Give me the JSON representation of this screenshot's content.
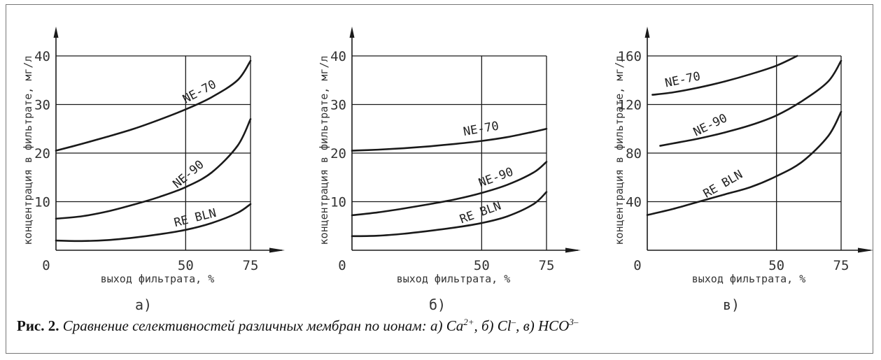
{
  "chart_data": [
    {
      "type": "line",
      "panel_label": "а)",
      "xlabel": "выход фильтрата, %",
      "ylabel": "концентрация в фильтрате, мг/л",
      "xlim": [
        0,
        75
      ],
      "ylim": [
        0,
        40
      ],
      "xticks": [
        0,
        50,
        75
      ],
      "yticks": [
        10,
        20,
        30,
        40
      ],
      "grid": true,
      "series": [
        {
          "name": "NE-70",
          "x": [
            0,
            10,
            20,
            30,
            40,
            50,
            60,
            70,
            75
          ],
          "values": [
            20.5,
            21.9,
            23.4,
            25.0,
            26.9,
            29.0,
            31.5,
            35.0,
            39.0
          ]
        },
        {
          "name": "NE-90",
          "x": [
            0,
            10,
            20,
            30,
            40,
            50,
            60,
            70,
            75
          ],
          "values": [
            6.5,
            7.0,
            8.0,
            9.4,
            11.0,
            13.0,
            16.0,
            21.5,
            27.0
          ]
        },
        {
          "name": "RE BLN",
          "x": [
            0,
            10,
            20,
            30,
            40,
            50,
            60,
            70,
            75
          ],
          "values": [
            2.0,
            1.9,
            2.1,
            2.6,
            3.3,
            4.2,
            5.6,
            7.7,
            9.5
          ]
        }
      ]
    },
    {
      "type": "line",
      "panel_label": "б)",
      "xlabel": "выход фильтрата, %",
      "ylabel": "концентрация в фильтрате, мг/л",
      "xlim": [
        0,
        75
      ],
      "ylim": [
        0,
        40
      ],
      "xticks": [
        0,
        50,
        75
      ],
      "yticks": [
        10,
        20,
        30,
        40
      ],
      "grid": true,
      "series": [
        {
          "name": "NE-70",
          "x": [
            0,
            10,
            20,
            30,
            40,
            50,
            60,
            70,
            75
          ],
          "values": [
            20.5,
            20.7,
            21.0,
            21.4,
            21.9,
            22.5,
            23.3,
            24.4,
            25.0
          ]
        },
        {
          "name": "NE-90",
          "x": [
            0,
            10,
            20,
            30,
            40,
            50,
            60,
            70,
            75
          ],
          "values": [
            7.2,
            7.8,
            8.6,
            9.5,
            10.5,
            11.8,
            13.5,
            16.0,
            18.2
          ]
        },
        {
          "name": "RE BLN",
          "x": [
            0,
            10,
            20,
            30,
            40,
            50,
            60,
            70,
            75
          ],
          "values": [
            2.9,
            3.0,
            3.4,
            4.0,
            4.7,
            5.6,
            7.0,
            9.5,
            12.0
          ]
        }
      ]
    },
    {
      "type": "line",
      "panel_label": "в)",
      "xlabel": "выход фильтрата, %",
      "ylabel": "концентрация в фильтрате, мг/л",
      "xlim": [
        0,
        75
      ],
      "ylim": [
        0,
        160
      ],
      "xticks": [
        0,
        50,
        75
      ],
      "yticks": [
        40,
        80,
        120,
        160
      ],
      "grid": true,
      "series": [
        {
          "name": "NE-70",
          "x": [
            2,
            10,
            20,
            30,
            40,
            50,
            58
          ],
          "values": [
            128,
            130,
            134,
            139,
            145,
            152,
            160
          ]
        },
        {
          "name": "NE-90",
          "x": [
            5,
            10,
            20,
            30,
            40,
            50,
            60,
            70,
            75
          ],
          "values": [
            86,
            88,
            92,
            97,
            103,
            111,
            123,
            139,
            156
          ]
        },
        {
          "name": "RE BLN",
          "x": [
            0,
            10,
            20,
            30,
            40,
            50,
            60,
            70,
            75
          ],
          "values": [
            29,
            34,
            40,
            46,
            52,
            61,
            73,
            94,
            114
          ]
        }
      ]
    }
  ],
  "caption": {
    "label": "Рис. 2.",
    "text": "Сравнение селективностей различных мембран по ионам: а) Ca",
    "ion1_sup": "2+",
    "sep1": ", б) Cl",
    "ion2_sup": "–",
    "sep2": ", в) HCO",
    "ion3_sup": "3–"
  }
}
